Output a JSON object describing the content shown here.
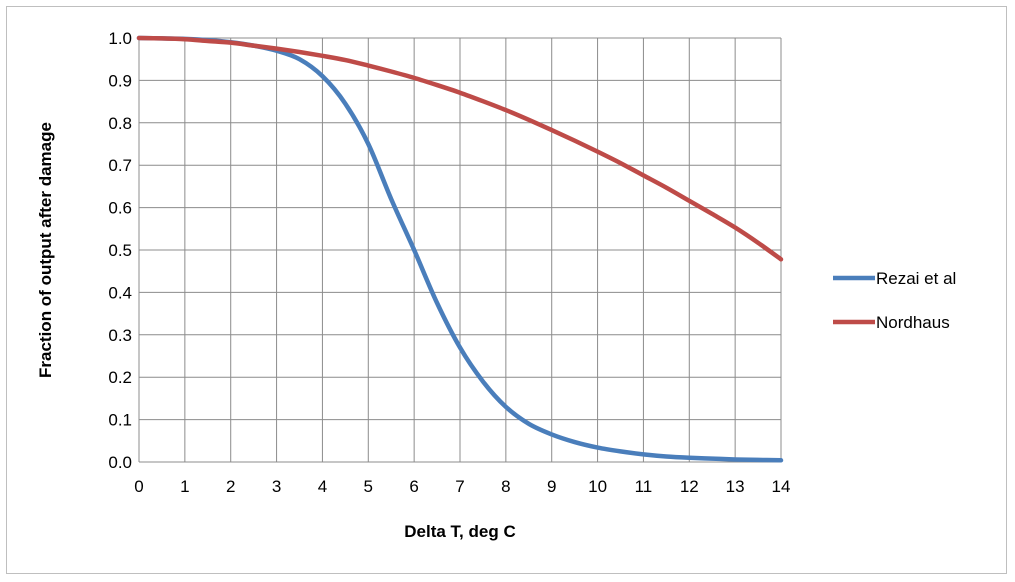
{
  "chart_data": {
    "type": "line",
    "title": "",
    "xlabel": "Delta T, deg C",
    "ylabel": "Fraction of output after damage",
    "xlim": [
      0,
      14
    ],
    "ylim": [
      0,
      1
    ],
    "x_ticks": [
      "0",
      "1",
      "2",
      "3",
      "4",
      "5",
      "6",
      "7",
      "8",
      "9",
      "10",
      "11",
      "12",
      "13",
      "14"
    ],
    "y_ticks": [
      "0.0",
      "0.1",
      "0.2",
      "0.3",
      "0.4",
      "0.5",
      "0.6",
      "0.7",
      "0.8",
      "0.9",
      "1.0"
    ],
    "grid": true,
    "legend_position": "right",
    "x": [
      0,
      0.5,
      1,
      1.5,
      2,
      2.5,
      3,
      3.5,
      4,
      4.5,
      5,
      5.5,
      6,
      6.5,
      7,
      7.5,
      8,
      8.5,
      9,
      9.5,
      10,
      10.5,
      11,
      11.5,
      12,
      12.5,
      13,
      13.5,
      14
    ],
    "series": [
      {
        "name": "Rezai et al",
        "color": "#4a7ebb",
        "values": [
          1.0,
          0.999,
          0.998,
          0.995,
          0.99,
          0.982,
          0.97,
          0.95,
          0.91,
          0.845,
          0.75,
          0.62,
          0.5,
          0.375,
          0.27,
          0.19,
          0.13,
          0.09,
          0.065,
          0.047,
          0.034,
          0.025,
          0.018,
          0.013,
          0.01,
          0.008,
          0.006,
          0.005,
          0.004
        ]
      },
      {
        "name": "Nordhaus",
        "color": "#be4b48",
        "values": [
          1.0,
          0.999,
          0.997,
          0.993,
          0.989,
          0.982,
          0.975,
          0.967,
          0.958,
          0.948,
          0.935,
          0.921,
          0.906,
          0.889,
          0.871,
          0.851,
          0.83,
          0.807,
          0.783,
          0.758,
          0.732,
          0.705,
          0.676,
          0.647,
          0.616,
          0.585,
          0.553,
          0.517,
          0.478
        ]
      }
    ]
  }
}
